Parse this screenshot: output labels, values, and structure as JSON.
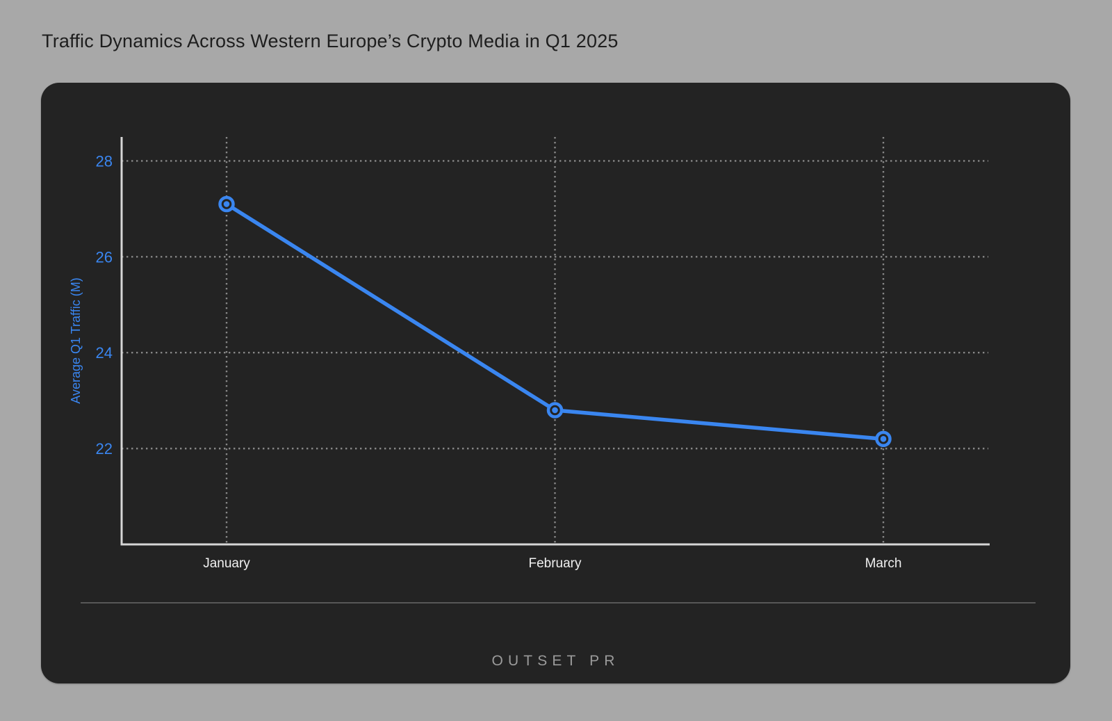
{
  "page": {
    "title": "Traffic Dynamics Across Western Europe’s Crypto Media in Q1 2025",
    "logo_text": "OUTSET PR",
    "background_color": "#a8a8a8",
    "card_color": "#232323"
  },
  "chart_data": {
    "type": "line",
    "categories": [
      "January",
      "February",
      "March"
    ],
    "series": [
      {
        "name": "Average Q1 Traffic",
        "values": [
          27.1,
          22.8,
          22.2
        ]
      }
    ],
    "title": "",
    "xlabel": "",
    "ylabel": "Average Q1 Traffic (M)",
    "yticks": [
      22,
      24,
      26,
      28
    ],
    "ylim": [
      20,
      28.5
    ],
    "grid": true,
    "legend": false,
    "colors": {
      "line": "#3a86f0",
      "marker_ring": "#3a86f0",
      "marker_core": "#3a86f0",
      "tick_labels": "#3a86f0",
      "axis_title": "#3a86f0",
      "category_labels": "#f0f0f0",
      "gridlines": "#878787",
      "axis_lines": "#d6d6d6"
    }
  }
}
